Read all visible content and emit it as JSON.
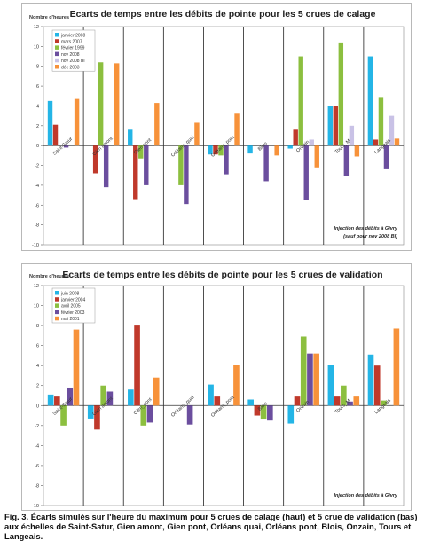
{
  "colors": {
    "frame": "#b8b8b8",
    "axis": "#333333",
    "grid": "#000000",
    "palette_top": [
      "#24b5e6",
      "#c0392b",
      "#8cbf3f",
      "#6b4e9e",
      "#c9c2e6",
      "#f7923a"
    ],
    "palette_bottom": [
      "#24b5e6",
      "#c0392b",
      "#8cbf3f",
      "#6b4e9e",
      "#f7923a"
    ]
  },
  "chart_data": [
    {
      "type": "bar",
      "title": "Ecarts de temps entre les débits de pointe pour les 5 crues de calage",
      "ylabel": "Nombre d'heures",
      "ylim": [
        -10,
        12
      ],
      "yticks": [
        -10,
        -8,
        -6,
        -4,
        -2,
        0,
        2,
        4,
        6,
        8,
        10,
        12
      ],
      "categories": [
        "Saint-Satur",
        "Gien amont",
        "Gien pont",
        "Orléans_quai",
        "Orléans_pont",
        "Blois",
        "Onzain",
        "Tours_M",
        "Langeais"
      ],
      "series": [
        {
          "name": "janvier 2008",
          "values": [
            4.5,
            0,
            1.6,
            0,
            -0.9,
            -0.8,
            -0.3,
            4.0,
            9.0
          ]
        },
        {
          "name": "mars 2007",
          "values": [
            2.1,
            -2.8,
            -5.4,
            0,
            -0.9,
            0,
            1.6,
            4.0,
            0.6
          ]
        },
        {
          "name": "février 1999",
          "values": [
            0,
            8.4,
            -1.3,
            -4.0,
            -1.0,
            0,
            9.0,
            10.4,
            4.9
          ]
        },
        {
          "name": "nov 2008",
          "values": [
            -0.2,
            -4.2,
            -4.0,
            -5.9,
            -2.9,
            -3.6,
            -5.5,
            -3.1,
            -2.3
          ]
        },
        {
          "name": "nov 2008 BI",
          "values": [
            0,
            0,
            0,
            0,
            0,
            0,
            0.6,
            2.0,
            3.0
          ]
        },
        {
          "name": "déc 2003",
          "values": [
            4.7,
            8.3,
            4.3,
            2.3,
            3.3,
            -1.0,
            -2.2,
            -1.1,
            0.7
          ]
        }
      ],
      "annotation": [
        "Injection des débits à Givry",
        "(sauf pour nov 2008 BI)"
      ],
      "legend_position": "top-left"
    },
    {
      "type": "bar",
      "title": "Ecarts de temps entre les débits de pointe pour les 5 crues de validation",
      "ylabel": "Nombre d'heures",
      "ylim": [
        -10,
        12
      ],
      "yticks": [
        -10,
        -8,
        -6,
        -4,
        -2,
        0,
        2,
        4,
        6,
        8,
        10,
        12
      ],
      "categories": [
        "Saint-Satur",
        "Gien amont",
        "Gien_pont",
        "Orléans_quai",
        "Orléans_pont",
        "Blois",
        "Onzain",
        "Tours_M",
        "Langeais"
      ],
      "series": [
        {
          "name": "juin 2008",
          "values": [
            1.1,
            -1.3,
            1.6,
            0,
            2.1,
            0.6,
            -1.8,
            4.1,
            5.1
          ]
        },
        {
          "name": "janvier 2004",
          "values": [
            0.9,
            -2.4,
            8.0,
            0,
            0.9,
            -1.0,
            0.9,
            0.9,
            4.0
          ]
        },
        {
          "name": "avril 2005",
          "values": [
            -2.0,
            2.0,
            -2.0,
            0,
            0,
            -1.4,
            6.9,
            2.0,
            0.5
          ]
        },
        {
          "name": "février 2003",
          "values": [
            1.8,
            1.4,
            -1.7,
            -1.9,
            0,
            -1.5,
            5.2,
            0.4,
            0
          ]
        },
        {
          "name": "mai 2001",
          "values": [
            7.6,
            0,
            2.8,
            0,
            4.1,
            0,
            5.2,
            0.9,
            7.7
          ]
        }
      ],
      "annotation": [
        "Injection des débits à Givry"
      ],
      "legend_position": "top-left"
    }
  ],
  "caption": {
    "text_part1": "Fig. 3. Écarts simulés sur ",
    "link1": "l'heure",
    "text_part2": " du maximum pour 5 crues de calage (haut) et 5 ",
    "link2": "crue",
    "text_part3": " de validation (bas) aux échelles de Saint-Satur, Gien amont, Gien pont, Orléans quai, Orléans pont, Blois, Onzain, Tours et Langeais."
  }
}
